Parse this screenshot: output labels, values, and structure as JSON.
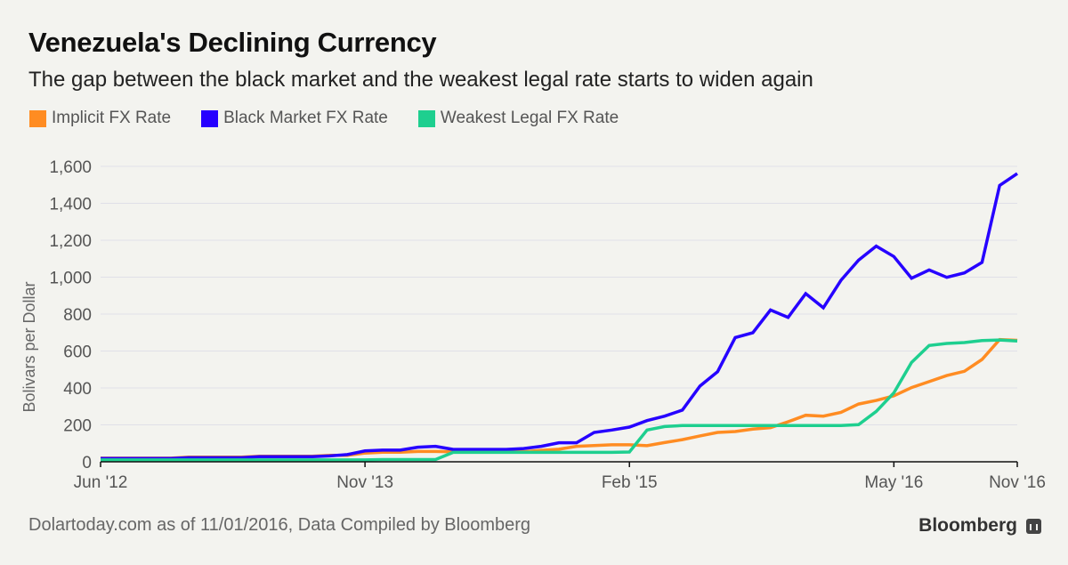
{
  "header": {
    "title": "Venezuela's Declining Currency",
    "subtitle": "The gap between the black market and the weakest legal rate starts to widen again"
  },
  "footer": {
    "source": "Dolartoday.com as of 11/01/2016, Data Compiled by Bloomberg",
    "logo": "Bloomberg"
  },
  "chart_data": {
    "type": "line",
    "title": "Venezuela's Declining Currency",
    "subtitle": "The gap between the black market and the weakest legal rate starts to widen again",
    "xlabel": "",
    "ylabel": "Bolivars per Dollar",
    "ylim": [
      0,
      1600
    ],
    "yticks": [
      {
        "value": 0,
        "label": "0"
      },
      {
        "value": 200,
        "label": "200"
      },
      {
        "value": 400,
        "label": "400"
      },
      {
        "value": 600,
        "label": "600"
      },
      {
        "value": 800,
        "label": "800"
      },
      {
        "value": 1000,
        "label": "1,000"
      },
      {
        "value": 1200,
        "label": "1,200"
      },
      {
        "value": 1400,
        "label": "1,400"
      },
      {
        "value": 1600,
        "label": "1,600"
      }
    ],
    "xticks": [
      {
        "index": 0,
        "label": "Jun '12"
      },
      {
        "index": 15,
        "label": "Nov '13"
      },
      {
        "index": 30,
        "label": "Feb '15"
      },
      {
        "index": 45,
        "label": "May '16"
      },
      {
        "index": 52,
        "label": "Nov '16"
      }
    ],
    "grid": true,
    "legend_position": "top-left",
    "series": [
      {
        "name": "Implicit FX Rate",
        "color": "#ff8c22",
        "values": [
          20,
          20,
          20,
          20,
          20,
          25,
          25,
          25,
          25,
          30,
          30,
          30,
          30,
          35,
          35,
          47,
          52,
          52,
          56,
          56,
          54,
          54,
          54,
          54,
          54,
          62,
          68,
          84,
          88,
          92,
          92,
          87,
          104,
          120,
          140,
          159,
          164,
          177,
          185,
          217,
          252,
          247,
          268,
          313,
          332,
          357,
          402,
          434,
          467,
          490,
          554,
          662,
          658
        ]
      },
      {
        "name": "Black Market FX Rate",
        "color": "#2600ff",
        "values": [
          18,
          18,
          18,
          18,
          18,
          22,
          22,
          22,
          22,
          28,
          28,
          28,
          28,
          32,
          39,
          59,
          63,
          63,
          79,
          84,
          67,
          67,
          67,
          67,
          72,
          84,
          103,
          103,
          159,
          172,
          188,
          223,
          247,
          280,
          410,
          488,
          673,
          699,
          822,
          782,
          911,
          834,
          983,
          1092,
          1168,
          1112,
          994,
          1039,
          999,
          1023,
          1080,
          1497,
          1561
        ]
      },
      {
        "name": "Weakest Legal FX Rate",
        "color": "#1ecf8f",
        "values": [
          10,
          10,
          10,
          10,
          10,
          10,
          10,
          10,
          10,
          10,
          10,
          10,
          10,
          10,
          10,
          10,
          12,
          12,
          12,
          12,
          51,
          51,
          51,
          51,
          51,
          51,
          51,
          51,
          51,
          51,
          53,
          172,
          191,
          196,
          196,
          196,
          196,
          196,
          196,
          196,
          196,
          196,
          196,
          201,
          273,
          373,
          538,
          630,
          641,
          646,
          657,
          660,
          654
        ]
      }
    ]
  }
}
